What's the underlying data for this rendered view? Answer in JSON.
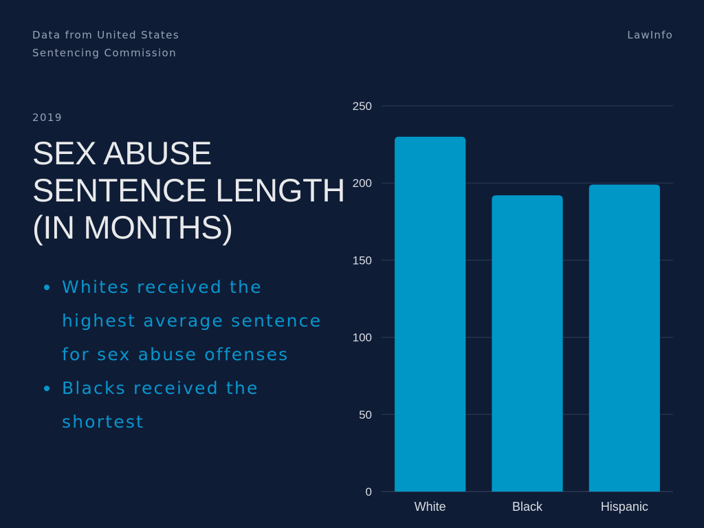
{
  "header": {
    "source_line1": "Data from United States",
    "source_line2": "Sentencing Commission",
    "brand": "LawInfo"
  },
  "year": "2019",
  "title_lines": [
    "SEX ABUSE",
    "SENTENCE LENGTH",
    "(IN MONTHS)"
  ],
  "bullets": [
    "Whites received the highest average sentence for sex abuse offenses",
    "Blacks received the shortest"
  ],
  "colors": {
    "background": "#0f1c36",
    "bar": "#0097c7",
    "gridline": "#2e3b55",
    "tick_label": "#d9dde3",
    "bullet_text": "#0896cd"
  },
  "chart_data": {
    "type": "bar",
    "title": "SEX ABUSE SENTENCE LENGTH (IN MONTHS)",
    "categories": [
      "White",
      "Black",
      "Hispanic"
    ],
    "values": [
      230,
      192,
      199
    ],
    "ylim": [
      0,
      250
    ],
    "yticks": [
      0,
      50,
      100,
      150,
      200,
      250
    ],
    "xlabel": "",
    "ylabel": "",
    "grid": true,
    "legend": "none"
  }
}
